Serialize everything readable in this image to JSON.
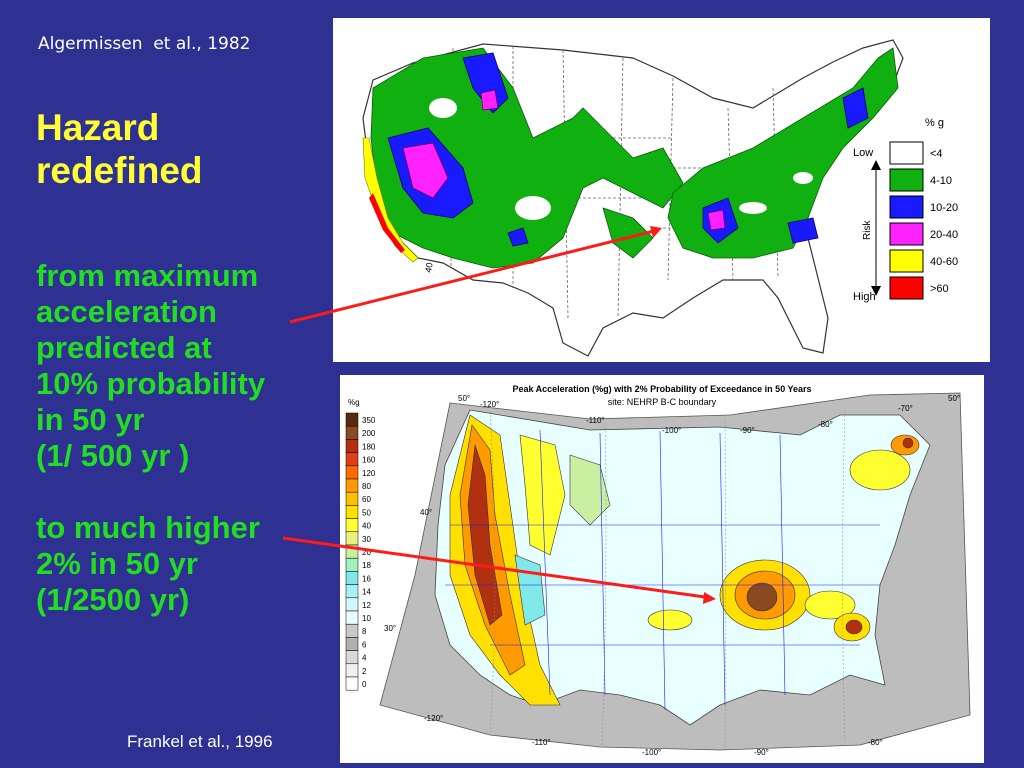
{
  "citation_top": "Algermissen  et al., 1982",
  "title_lines": [
    "Hazard",
    "redefined"
  ],
  "body_lines_1": [
    "from maximum",
    "acceleration",
    "predicted at",
    "10% probability",
    "in 50 yr",
    "(1/ 500 yr )"
  ],
  "body_lines_2": [
    "to much higher",
    "2% in 50 yr",
    "(1/2500 yr)"
  ],
  "citation_bottom": "Frankel et al., 1996",
  "map1": {
    "legend_header": "% g",
    "axis_low": "Low",
    "axis_high": "High",
    "axis_risk": "Risk",
    "latitude_label": "40",
    "classes": [
      {
        "label": "<4",
        "color": "#ffffff"
      },
      {
        "label": "4-10",
        "color": "#10b010"
      },
      {
        "label": "10-20",
        "color": "#1a1aff"
      },
      {
        "label": "20-40",
        "color": "#ff22ff"
      },
      {
        "label": "40-60",
        "color": "#ffff00"
      },
      {
        "label": ">60",
        "color": "#ff0000"
      }
    ]
  },
  "map2": {
    "title": "Peak Acceleration (%g) with 2% Probability of Exceedance in 50 Years",
    "subtitle": "site: NEHRP B-C boundary",
    "scale_unit": "%g",
    "scale": [
      {
        "label": "350",
        "color": "#5a2a10"
      },
      {
        "label": "200",
        "color": "#8a4a20"
      },
      {
        "label": "180",
        "color": "#b03010"
      },
      {
        "label": "160",
        "color": "#e04010"
      },
      {
        "label": "120",
        "color": "#ff6a00"
      },
      {
        "label": "80",
        "color": "#ff9a00"
      },
      {
        "label": "60",
        "color": "#ffc000"
      },
      {
        "label": "50",
        "color": "#ffe000"
      },
      {
        "label": "40",
        "color": "#ffff30"
      },
      {
        "label": "30",
        "color": "#e8f080"
      },
      {
        "label": "20",
        "color": "#c8f0a0"
      },
      {
        "label": "18",
        "color": "#a0f0c0"
      },
      {
        "label": "16",
        "color": "#80e8e8"
      },
      {
        "label": "14",
        "color": "#a8f0f8"
      },
      {
        "label": "12",
        "color": "#d0f8ff"
      },
      {
        "label": "10",
        "color": "#e8ffff"
      },
      {
        "label": "8",
        "color": "#c8c8c8"
      },
      {
        "label": "6",
        "color": "#b0b0b0"
      },
      {
        "label": "4",
        "color": "#d8d8d8"
      },
      {
        "label": "2",
        "color": "#f0f0f0"
      },
      {
        "label": "0",
        "color": "#ffffff"
      }
    ],
    "lon_top": [
      "-120°",
      "-110°",
      "-100°",
      "-90°",
      "-80°",
      "-70°"
    ],
    "lon_bottom": [
      "-120°",
      "-110°",
      "-100°",
      "-90°",
      "-80°"
    ],
    "lat_left": [
      "50°",
      "40°",
      "30°"
    ],
    "lat_right": [
      "50°"
    ]
  },
  "colors": {
    "background": "#2e3192",
    "title": "#ffff33",
    "body": "#22dd22",
    "arrow": "#ff1a1a"
  }
}
